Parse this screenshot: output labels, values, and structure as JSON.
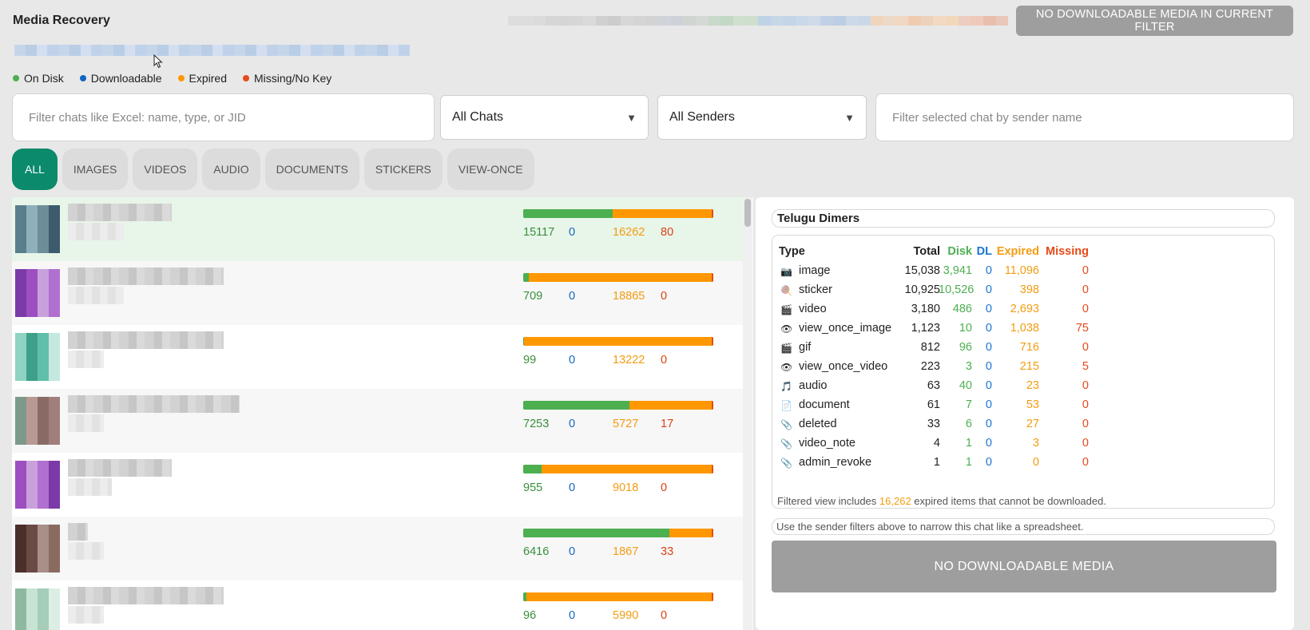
{
  "app": {
    "title": "Media Recovery"
  },
  "top_button": {
    "label": "NO DOWNLOADABLE MEDIA IN CURRENT FILTER"
  },
  "legend": [
    {
      "label": "On Disk",
      "color": "#4caf50"
    },
    {
      "label": "Downloadable",
      "color": "#1565c0"
    },
    {
      "label": "Expired",
      "color": "#ff9800"
    },
    {
      "label": "Missing/No Key",
      "color": "#e64a19"
    }
  ],
  "filters": {
    "chat_filter_placeholder": "Filter chats like Excel: name, type, or JID",
    "chat_select": "All Chats",
    "sender_select": "All Senders",
    "sender_filter_placeholder": "Filter selected chat by sender name"
  },
  "tabs": [
    "ALL",
    "IMAGES",
    "VIDEOS",
    "AUDIO",
    "DOCUMENTS",
    "STICKERS",
    "VIEW-ONCE"
  ],
  "chats": [
    {
      "disk": "15117",
      "dl": "0",
      "expired": "16262",
      "missing": "80",
      "disk_frac": 0.47,
      "avatar": [
        "#5a7f8c",
        "#3d5b6b",
        "#6d8d99",
        "#8fb0bb"
      ]
    },
    {
      "disk": "709",
      "dl": "0",
      "expired": "18865",
      "missing": "0",
      "disk_frac": 0.03,
      "avatar": [
        "#9b4fc0",
        "#7b3aa8",
        "#b070d0",
        "#c9a0dc"
      ]
    },
    {
      "disk": "99",
      "dl": "0",
      "expired": "13222",
      "missing": "0",
      "disk_frac": 0.005,
      "avatar": [
        "#5fbfa8",
        "#3ea08a",
        "#8fd3c2",
        "#c4e8df"
      ]
    },
    {
      "disk": "7253",
      "dl": "0",
      "expired": "5727",
      "missing": "17",
      "disk_frac": 0.56,
      "avatar": [
        "#a07f7a",
        "#8a6a66",
        "#b89a94",
        "#7b9a8a"
      ]
    },
    {
      "disk": "955",
      "dl": "0",
      "expired": "9018",
      "missing": "0",
      "disk_frac": 0.095,
      "avatar": [
        "#9b4fc0",
        "#7b3aa8",
        "#b070d0",
        "#c9a0dc"
      ]
    },
    {
      "disk": "6416",
      "dl": "0",
      "expired": "1867",
      "missing": "33",
      "disk_frac": 0.77,
      "avatar": [
        "#6b4a44",
        "#4a2f2b",
        "#8a6b60",
        "#a89088"
      ]
    },
    {
      "disk": "96",
      "dl": "0",
      "expired": "5990",
      "missing": "0",
      "disk_frac": 0.015,
      "avatar": [
        "#a5cdb8",
        "#c6e3d4",
        "#8fb8a0",
        "#dceee4"
      ]
    }
  ],
  "panel": {
    "chat_name": "Telugu Dimers",
    "headers": {
      "type": "Type",
      "total": "Total",
      "disk": "Disk",
      "dl": "DL",
      "expired": "Expired",
      "missing": "Missing"
    },
    "rows": [
      {
        "icon": "📷",
        "icon_name": "camera-icon",
        "type": "image",
        "total": "15,038",
        "disk": "3,941",
        "dl": "0",
        "expired": "11,096",
        "missing": "0"
      },
      {
        "icon": "🍭",
        "icon_name": "lollipop-icon",
        "type": "sticker",
        "total": "10,925",
        "disk": "10,526",
        "dl": "0",
        "expired": "398",
        "missing": "0"
      },
      {
        "icon": "🎬",
        "icon_name": "clapperboard-icon",
        "type": "video",
        "total": "3,180",
        "disk": "486",
        "dl": "0",
        "expired": "2,693",
        "missing": "0"
      },
      {
        "icon": "👁",
        "icon_name": "eye-icon",
        "type": "view_once_image",
        "total": "1,123",
        "disk": "10",
        "dl": "0",
        "expired": "1,038",
        "missing": "75"
      },
      {
        "icon": "🎬",
        "icon_name": "clapperboard-icon",
        "type": "gif",
        "total": "812",
        "disk": "96",
        "dl": "0",
        "expired": "716",
        "missing": "0"
      },
      {
        "icon": "👁",
        "icon_name": "eye-icon",
        "type": "view_once_video",
        "total": "223",
        "disk": "3",
        "dl": "0",
        "expired": "215",
        "missing": "5"
      },
      {
        "icon": "🎵",
        "icon_name": "music-note-icon",
        "type": "audio",
        "total": "63",
        "disk": "40",
        "dl": "0",
        "expired": "23",
        "missing": "0"
      },
      {
        "icon": "📄",
        "icon_name": "document-icon",
        "type": "document",
        "total": "61",
        "disk": "7",
        "dl": "0",
        "expired": "53",
        "missing": "0"
      },
      {
        "icon": "📎",
        "icon_name": "paperclip-icon",
        "type": "deleted",
        "total": "33",
        "disk": "6",
        "dl": "0",
        "expired": "27",
        "missing": "0"
      },
      {
        "icon": "📎",
        "icon_name": "paperclip-icon",
        "type": "video_note",
        "total": "4",
        "disk": "1",
        "dl": "0",
        "expired": "3",
        "missing": "0"
      },
      {
        "icon": "📎",
        "icon_name": "paperclip-icon",
        "type": "admin_revoke",
        "total": "1",
        "disk": "1",
        "dl": "0",
        "expired": "0",
        "missing": "0"
      }
    ],
    "filtered_note_prefix": "Filtered view includes",
    "filtered_note_count": "16,262",
    "filtered_note_suffix": "expired items that cannot be downloaded.",
    "sender_note": "Use the sender filters above to narrow this chat like a spreadsheet.",
    "button_label": "NO DOWNLOADABLE MEDIA"
  }
}
